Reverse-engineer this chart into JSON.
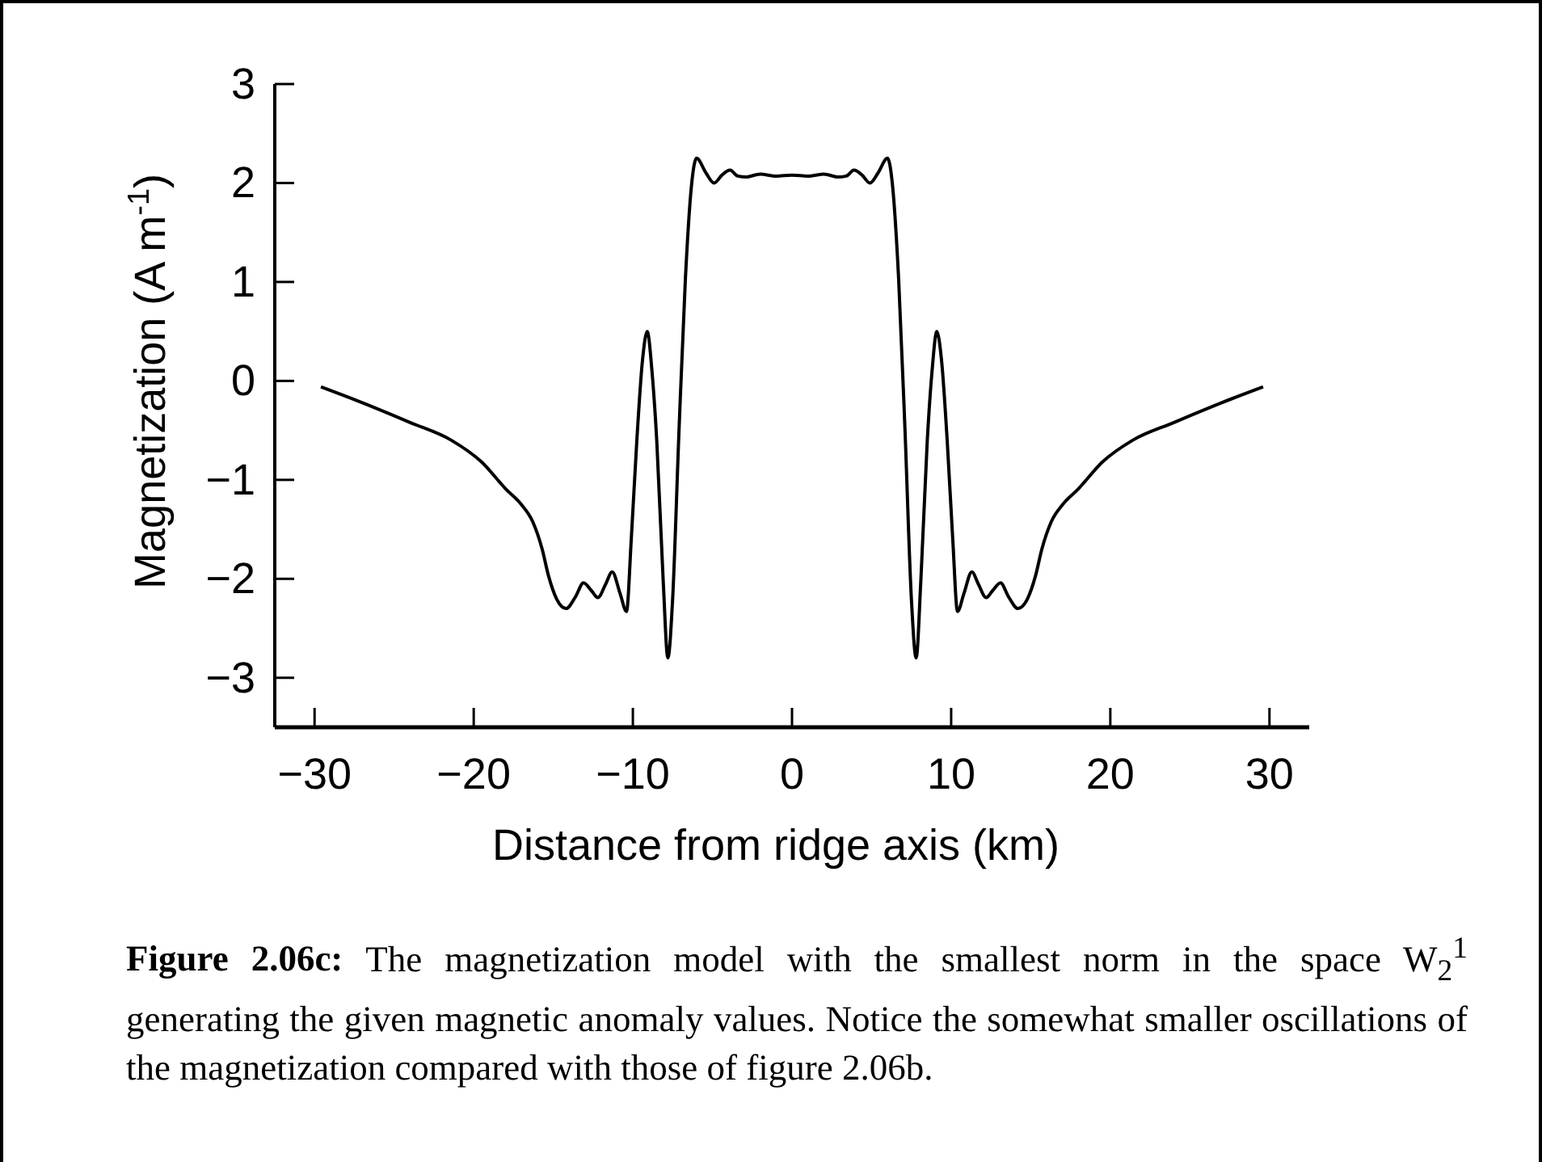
{
  "chart_data": {
    "type": "line",
    "xlabel": "Distance from ridge axis (km)",
    "ylabel": "Magnetization (A m$^{-1}$)",
    "x": [
      -29.6,
      -27,
      -24,
      -21.4,
      -19.5,
      -18,
      -17,
      -16.3,
      -15.7,
      -15.3,
      -14.8,
      -14.2,
      -13.6,
      -13.1,
      -12.6,
      -12.2,
      -11.7,
      -11.3,
      -10.8,
      -10.4,
      -10.1,
      -9.75,
      -9.4,
      -9.1,
      -8.8,
      -8.5,
      -8.1,
      -7.8,
      -7.5,
      -7.1,
      -6.7,
      -6.3,
      -6.0,
      -5.4,
      -4.9,
      -4.4,
      -3.9,
      -3.4,
      -2.9,
      -2.0,
      -1.0,
      0,
      1.0,
      2.0,
      2.9,
      3.4,
      3.9,
      4.4,
      4.9,
      5.4,
      6.0,
      6.3,
      6.7,
      7.1,
      7.5,
      7.8,
      8.1,
      8.5,
      8.8,
      9.1,
      9.4,
      9.75,
      10.1,
      10.4,
      10.8,
      11.3,
      11.7,
      12.2,
      12.6,
      13.1,
      13.6,
      14.2,
      14.8,
      15.3,
      15.7,
      16.3,
      17,
      18,
      19.5,
      21.4,
      24,
      27,
      29.6
    ],
    "series": [
      {
        "color": "#000000",
        "values": [
          -0.06,
          -0.22,
          -0.42,
          -0.6,
          -0.82,
          -1.09,
          -1.25,
          -1.42,
          -1.7,
          -1.97,
          -2.2,
          -2.3,
          -2.18,
          -2.04,
          -2.12,
          -2.19,
          -2.05,
          -1.93,
          -2.15,
          -2.33,
          -1.6,
          -0.6,
          0.2,
          0.5,
          0.1,
          -0.6,
          -2.0,
          -2.8,
          -2.2,
          -0.5,
          1.03,
          2.0,
          2.25,
          2.1,
          2.0,
          2.08,
          2.13,
          2.07,
          2.06,
          2.09,
          2.07,
          2.08,
          2.07,
          2.09,
          2.06,
          2.07,
          2.13,
          2.08,
          2.0,
          2.1,
          2.25,
          2.0,
          1.03,
          -0.5,
          -2.2,
          -2.8,
          -2.0,
          -0.6,
          0.1,
          0.5,
          0.2,
          -0.6,
          -1.6,
          -2.33,
          -2.15,
          -1.93,
          -2.05,
          -2.19,
          -2.12,
          -2.04,
          -2.18,
          -2.3,
          -2.2,
          -1.97,
          -1.7,
          -1.42,
          -1.25,
          -1.09,
          -0.82,
          -0.6,
          -0.42,
          -0.22,
          -0.06
        ]
      }
    ],
    "xlim": [
      -32.5,
      32.5
    ],
    "xticks": [
      -30,
      -20,
      -10,
      0,
      10,
      20,
      30
    ],
    "ylim": [
      -3.5,
      3
    ],
    "yticks": [
      -3,
      -2,
      -1,
      0,
      1,
      2,
      3
    ],
    "grid": false,
    "marker": "none",
    "line_style": "solid",
    "annotations": [
      "Figure 2.06c:",
      "The magnetization model with the smallest norm in the space W$_{2}$$^{1}$ generating the given magnetic anomaly values. Notice the somewhat smaller oscillations of the magnetization compared with those of figure 2.06b."
    ]
  }
}
